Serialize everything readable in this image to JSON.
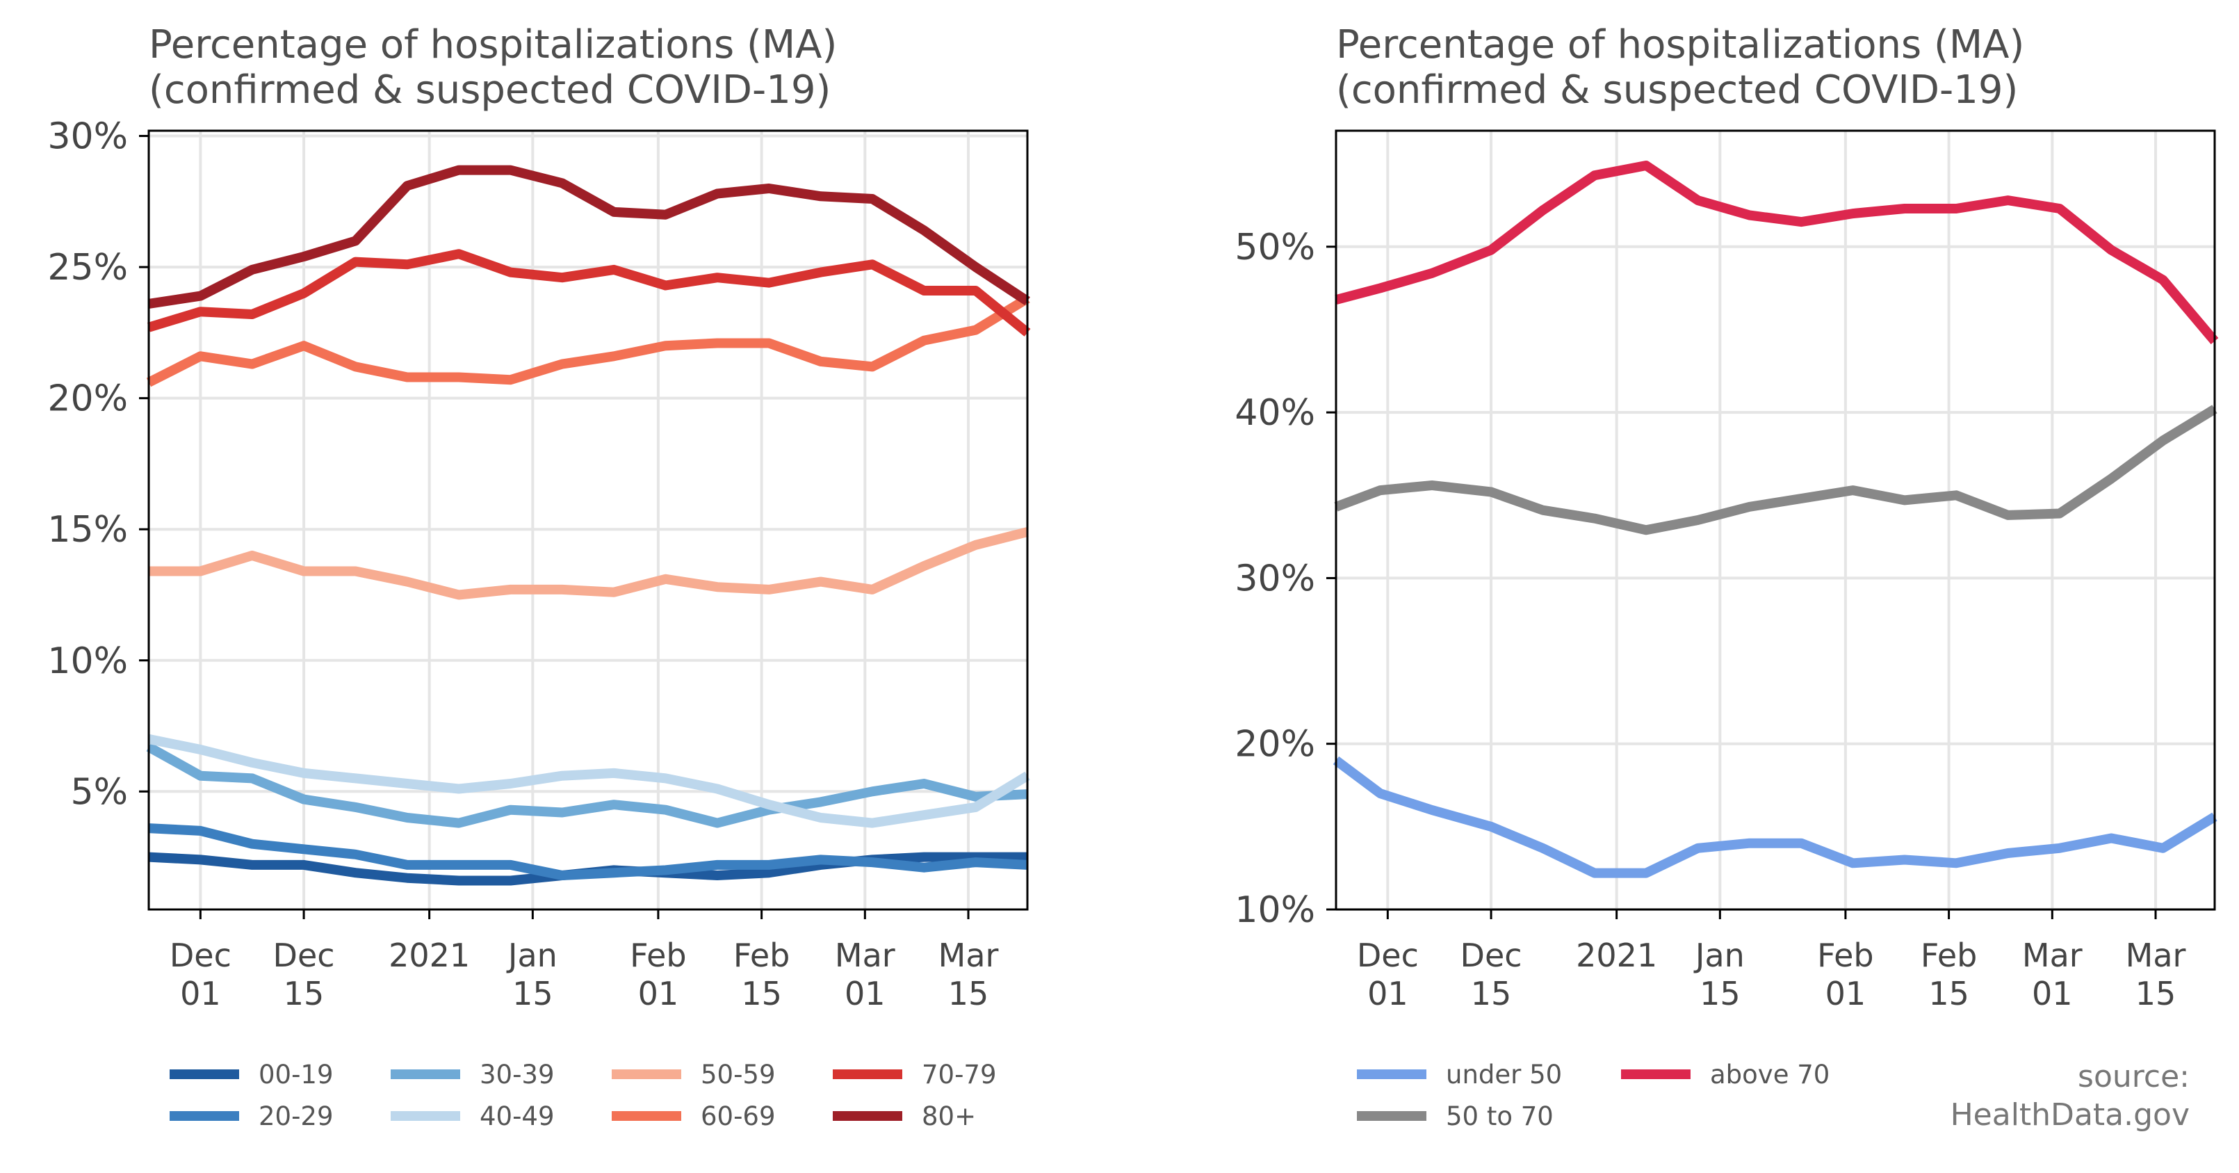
{
  "chart_data": [
    {
      "type": "line",
      "title": "Percentage of hospitalizations (MA)",
      "subtitle": "(confirmed & suspected COVID-19)",
      "x_dates": [
        "2020-11-24",
        "2020-12-01",
        "2020-12-08",
        "2020-12-15",
        "2020-12-22",
        "2020-12-29",
        "2021-01-05",
        "2021-01-12",
        "2021-01-19",
        "2021-01-26",
        "2021-02-02",
        "2021-02-09",
        "2021-02-16",
        "2021-02-23",
        "2021-03-02",
        "2021-03-09",
        "2021-03-16",
        "2021-03-23"
      ],
      "xticks": [
        "Dec\n01",
        "Dec\n15",
        "2021",
        "Jan\n15",
        "Feb\n01",
        "Feb\n15",
        "Mar\n01",
        "Mar\n15"
      ],
      "xtick_dates": [
        "2020-12-01",
        "2020-12-15",
        "2021-01-01",
        "2021-01-15",
        "2021-02-01",
        "2021-02-15",
        "2021-03-01",
        "2021-03-15"
      ],
      "yticks": [
        "5%",
        "10%",
        "15%",
        "20%",
        "25%",
        "30%"
      ],
      "ytick_values": [
        5,
        10,
        15,
        20,
        25,
        30
      ],
      "ylim": [
        0.5,
        30.2
      ],
      "grid": true,
      "legend_position": "bottom",
      "series": [
        {
          "name": "00-19",
          "color": "#1f5a9e",
          "values": [
            2.5,
            2.4,
            2.2,
            2.2,
            1.9,
            1.7,
            1.6,
            1.6,
            1.8,
            2.0,
            1.9,
            1.8,
            1.9,
            2.2,
            2.4,
            2.5,
            2.5,
            2.5
          ]
        },
        {
          "name": "20-29",
          "color": "#3b7fc0",
          "values": [
            3.6,
            3.5,
            3.0,
            2.8,
            2.6,
            2.2,
            2.2,
            2.2,
            1.8,
            1.9,
            2.0,
            2.2,
            2.2,
            2.4,
            2.3,
            2.1,
            2.3,
            2.2
          ]
        },
        {
          "name": "30-39",
          "color": "#6faad6",
          "values": [
            6.7,
            5.6,
            5.5,
            4.7,
            4.4,
            4.0,
            3.8,
            4.3,
            4.2,
            4.5,
            4.3,
            3.8,
            4.3,
            4.6,
            5.0,
            5.3,
            4.8,
            4.9
          ]
        },
        {
          "name": "40-49",
          "color": "#bdd7ec",
          "values": [
            7.0,
            6.6,
            6.1,
            5.7,
            5.5,
            5.3,
            5.1,
            5.3,
            5.6,
            5.7,
            5.5,
            5.1,
            4.5,
            4.0,
            3.8,
            4.1,
            4.4,
            5.6
          ]
        },
        {
          "name": "50-59",
          "color": "#f7ac91",
          "values": [
            13.4,
            13.4,
            14.0,
            13.4,
            13.4,
            13.0,
            12.5,
            12.7,
            12.7,
            12.6,
            13.1,
            12.8,
            12.7,
            13.0,
            12.7,
            13.6,
            14.4,
            14.9
          ]
        },
        {
          "name": "60-69",
          "color": "#f37154",
          "values": [
            20.6,
            21.6,
            21.3,
            22.0,
            21.2,
            20.8,
            20.8,
            20.7,
            21.3,
            21.6,
            22.0,
            22.1,
            22.1,
            21.4,
            21.2,
            22.2,
            22.6,
            23.8
          ]
        },
        {
          "name": "70-79",
          "color": "#d73330",
          "values": [
            22.7,
            23.3,
            23.2,
            24.0,
            25.2,
            25.1,
            25.5,
            24.8,
            24.6,
            24.9,
            24.3,
            24.6,
            24.4,
            24.8,
            25.1,
            24.1,
            24.1,
            22.5
          ]
        },
        {
          "name": "80+",
          "color": "#9e1f27",
          "values": [
            23.6,
            23.9,
            24.9,
            25.4,
            26.0,
            28.1,
            28.7,
            28.7,
            28.2,
            27.1,
            27.0,
            27.8,
            28.0,
            27.7,
            27.6,
            26.4,
            25.0,
            23.7
          ]
        }
      ]
    },
    {
      "type": "line",
      "title": "Percentage of hospitalizations (MA)",
      "subtitle": "(confirmed & suspected COVID-19)",
      "x_dates": [
        "2020-11-24",
        "2020-11-30",
        "2020-12-07",
        "2020-12-15",
        "2020-12-22",
        "2020-12-29",
        "2021-01-05",
        "2021-01-12",
        "2021-01-19",
        "2021-01-26",
        "2021-02-02",
        "2021-02-09",
        "2021-02-16",
        "2021-02-23",
        "2021-03-02",
        "2021-03-09",
        "2021-03-16",
        "2021-03-23"
      ],
      "xticks": [
        "Dec\n01",
        "Dec\n15",
        "2021",
        "Jan\n15",
        "Feb\n01",
        "Feb\n15",
        "Mar\n01",
        "Mar\n15"
      ],
      "xtick_dates": [
        "2020-12-01",
        "2020-12-15",
        "2021-01-01",
        "2021-01-15",
        "2021-02-01",
        "2021-02-15",
        "2021-03-01",
        "2021-03-15"
      ],
      "yticks": [
        "10%",
        "20%",
        "30%",
        "40%",
        "50%"
      ],
      "ytick_values": [
        10,
        20,
        30,
        40,
        50
      ],
      "ylim": [
        10,
        57
      ],
      "grid": true,
      "legend_position": "bottom",
      "series": [
        {
          "name": "under 50",
          "color": "#729fe8",
          "values": [
            19.0,
            17.0,
            16.0,
            15.0,
            13.7,
            12.2,
            12.2,
            13.7,
            14.0,
            14.0,
            12.8,
            13.0,
            12.8,
            13.4,
            13.7,
            14.3,
            13.7,
            15.6
          ]
        },
        {
          "name": "50 to 70",
          "color": "#888888",
          "values": [
            34.3,
            35.3,
            35.6,
            35.2,
            34.1,
            33.6,
            32.9,
            33.5,
            34.3,
            34.8,
            35.3,
            34.7,
            35.0,
            33.8,
            33.9,
            36.0,
            38.3,
            40.2
          ]
        },
        {
          "name": "above 70",
          "color": "#dc274e",
          "values": [
            46.8,
            47.5,
            48.4,
            49.8,
            52.2,
            54.3,
            54.9,
            52.8,
            51.9,
            51.5,
            52.0,
            52.3,
            52.3,
            52.8,
            52.3,
            49.8,
            48.0,
            44.3
          ]
        }
      ]
    }
  ],
  "source_line1": "source:",
  "source_line2": "HealthData.gov"
}
